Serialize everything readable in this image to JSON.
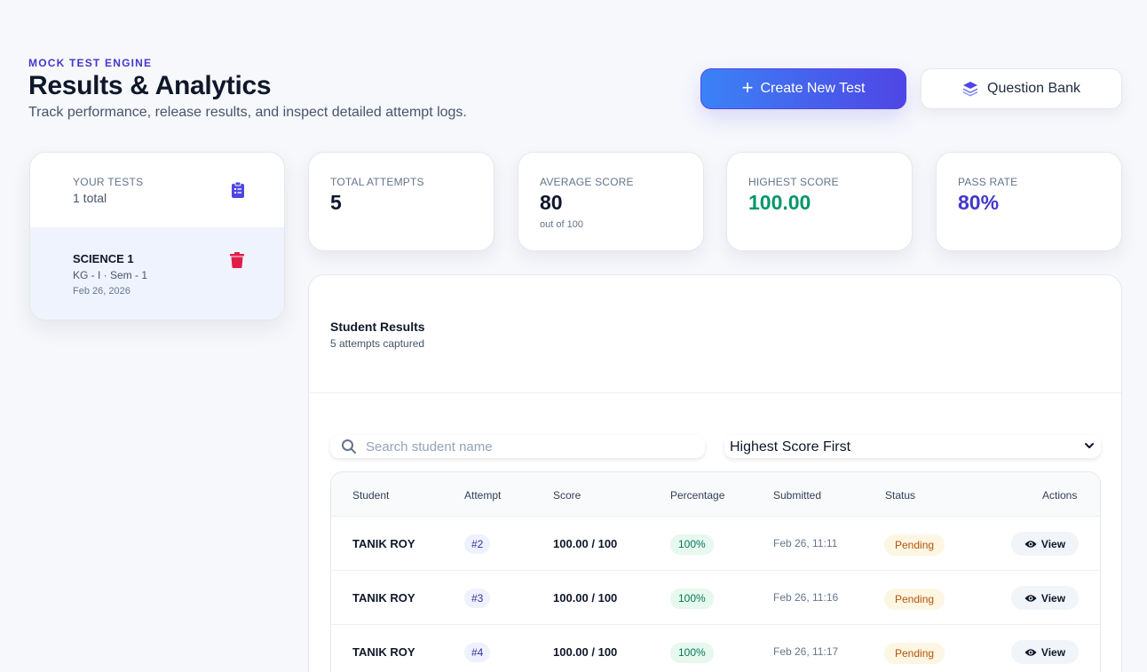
{
  "header": {
    "eyebrow": "MOCK TEST ENGINE",
    "title": "Results & Analytics",
    "subtitle": "Track performance, release results, and inspect detailed attempt logs.",
    "create_button": "Create New Test",
    "bank_button": "Question Bank"
  },
  "colors": {
    "primary_gradient_start": "#3b82f6",
    "primary_gradient_end": "#4f46e5",
    "success": "#059669",
    "accent": "#4338ca",
    "danger": "#e11d48",
    "warning": "#b45309"
  },
  "tests_panel": {
    "label": "YOUR TESTS",
    "count": "1 total",
    "icon": "clipboard-list-icon",
    "items": [
      {
        "name": "SCIENCE 1",
        "meta": "KG - I · Sem - 1",
        "date": "Feb 26, 2026",
        "icon": "trash-icon"
      }
    ]
  },
  "stats": [
    {
      "label": "TOTAL ATTEMPTS",
      "value": "5",
      "sub": ""
    },
    {
      "label": "AVERAGE SCORE",
      "value": "80",
      "sub": "out of 100"
    },
    {
      "label": "HIGHEST SCORE",
      "value": "100.00",
      "sub": ""
    },
    {
      "label": "PASS RATE",
      "value": "80%",
      "sub": ""
    }
  ],
  "results": {
    "title": "Student Results",
    "subtitle": "5 attempts captured",
    "search_placeholder": "Search student name",
    "sort_value": "Highest Score First",
    "columns": [
      "Student",
      "Attempt",
      "Score",
      "Percentage",
      "Submitted",
      "Status",
      "Actions"
    ],
    "rows": [
      {
        "student": "TANIK ROY",
        "attempt": "#2",
        "score": "100.00 / 100",
        "percentage": "100%",
        "submitted": "Feb 26, 11:11",
        "status": "Pending",
        "action": "View"
      },
      {
        "student": "TANIK ROY",
        "attempt": "#3",
        "score": "100.00 / 100",
        "percentage": "100%",
        "submitted": "Feb 26, 11:16",
        "status": "Pending",
        "action": "View"
      },
      {
        "student": "TANIK ROY",
        "attempt": "#4",
        "score": "100.00 / 100",
        "percentage": "100%",
        "submitted": "Feb 26, 11:17",
        "status": "Pending",
        "action": "View"
      }
    ]
  }
}
